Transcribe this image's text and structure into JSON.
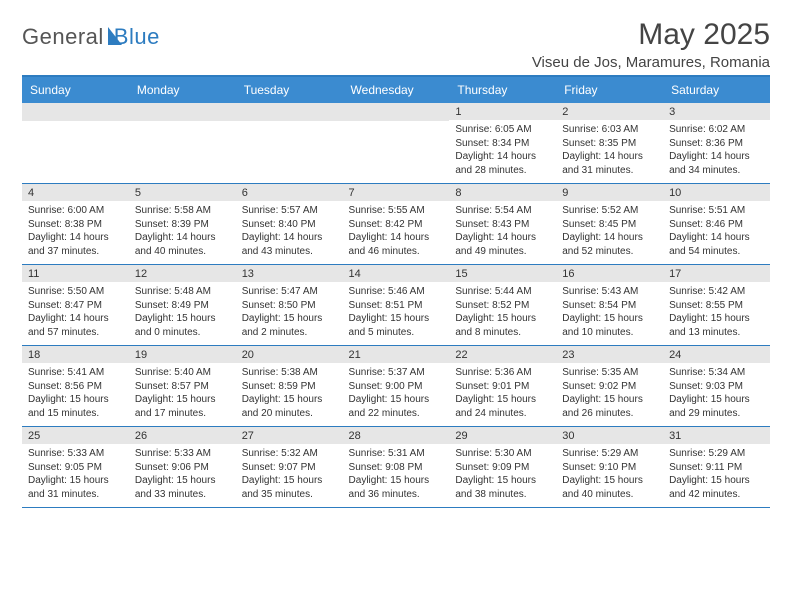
{
  "brand": {
    "part1": "General",
    "part2": "Blue"
  },
  "title": "May 2025",
  "location": "Viseu de Jos, Maramures, Romania",
  "colors": {
    "headerBlue": "#3b8bd0",
    "accentBorder": "#2d7cc0",
    "dayBarGray": "#e6e6e6",
    "textDark": "#333333",
    "background": "#ffffff"
  },
  "dayHeaders": [
    "Sunday",
    "Monday",
    "Tuesday",
    "Wednesday",
    "Thursday",
    "Friday",
    "Saturday"
  ],
  "weeks": [
    [
      {
        "num": "",
        "sr": "",
        "ss": "",
        "d1": "",
        "d2": ""
      },
      {
        "num": "",
        "sr": "",
        "ss": "",
        "d1": "",
        "d2": ""
      },
      {
        "num": "",
        "sr": "",
        "ss": "",
        "d1": "",
        "d2": ""
      },
      {
        "num": "",
        "sr": "",
        "ss": "",
        "d1": "",
        "d2": ""
      },
      {
        "num": "1",
        "sr": "Sunrise: 6:05 AM",
        "ss": "Sunset: 8:34 PM",
        "d1": "Daylight: 14 hours",
        "d2": "and 28 minutes."
      },
      {
        "num": "2",
        "sr": "Sunrise: 6:03 AM",
        "ss": "Sunset: 8:35 PM",
        "d1": "Daylight: 14 hours",
        "d2": "and 31 minutes."
      },
      {
        "num": "3",
        "sr": "Sunrise: 6:02 AM",
        "ss": "Sunset: 8:36 PM",
        "d1": "Daylight: 14 hours",
        "d2": "and 34 minutes."
      }
    ],
    [
      {
        "num": "4",
        "sr": "Sunrise: 6:00 AM",
        "ss": "Sunset: 8:38 PM",
        "d1": "Daylight: 14 hours",
        "d2": "and 37 minutes."
      },
      {
        "num": "5",
        "sr": "Sunrise: 5:58 AM",
        "ss": "Sunset: 8:39 PM",
        "d1": "Daylight: 14 hours",
        "d2": "and 40 minutes."
      },
      {
        "num": "6",
        "sr": "Sunrise: 5:57 AM",
        "ss": "Sunset: 8:40 PM",
        "d1": "Daylight: 14 hours",
        "d2": "and 43 minutes."
      },
      {
        "num": "7",
        "sr": "Sunrise: 5:55 AM",
        "ss": "Sunset: 8:42 PM",
        "d1": "Daylight: 14 hours",
        "d2": "and 46 minutes."
      },
      {
        "num": "8",
        "sr": "Sunrise: 5:54 AM",
        "ss": "Sunset: 8:43 PM",
        "d1": "Daylight: 14 hours",
        "d2": "and 49 minutes."
      },
      {
        "num": "9",
        "sr": "Sunrise: 5:52 AM",
        "ss": "Sunset: 8:45 PM",
        "d1": "Daylight: 14 hours",
        "d2": "and 52 minutes."
      },
      {
        "num": "10",
        "sr": "Sunrise: 5:51 AM",
        "ss": "Sunset: 8:46 PM",
        "d1": "Daylight: 14 hours",
        "d2": "and 54 minutes."
      }
    ],
    [
      {
        "num": "11",
        "sr": "Sunrise: 5:50 AM",
        "ss": "Sunset: 8:47 PM",
        "d1": "Daylight: 14 hours",
        "d2": "and 57 minutes."
      },
      {
        "num": "12",
        "sr": "Sunrise: 5:48 AM",
        "ss": "Sunset: 8:49 PM",
        "d1": "Daylight: 15 hours",
        "d2": "and 0 minutes."
      },
      {
        "num": "13",
        "sr": "Sunrise: 5:47 AM",
        "ss": "Sunset: 8:50 PM",
        "d1": "Daylight: 15 hours",
        "d2": "and 2 minutes."
      },
      {
        "num": "14",
        "sr": "Sunrise: 5:46 AM",
        "ss": "Sunset: 8:51 PM",
        "d1": "Daylight: 15 hours",
        "d2": "and 5 minutes."
      },
      {
        "num": "15",
        "sr": "Sunrise: 5:44 AM",
        "ss": "Sunset: 8:52 PM",
        "d1": "Daylight: 15 hours",
        "d2": "and 8 minutes."
      },
      {
        "num": "16",
        "sr": "Sunrise: 5:43 AM",
        "ss": "Sunset: 8:54 PM",
        "d1": "Daylight: 15 hours",
        "d2": "and 10 minutes."
      },
      {
        "num": "17",
        "sr": "Sunrise: 5:42 AM",
        "ss": "Sunset: 8:55 PM",
        "d1": "Daylight: 15 hours",
        "d2": "and 13 minutes."
      }
    ],
    [
      {
        "num": "18",
        "sr": "Sunrise: 5:41 AM",
        "ss": "Sunset: 8:56 PM",
        "d1": "Daylight: 15 hours",
        "d2": "and 15 minutes."
      },
      {
        "num": "19",
        "sr": "Sunrise: 5:40 AM",
        "ss": "Sunset: 8:57 PM",
        "d1": "Daylight: 15 hours",
        "d2": "and 17 minutes."
      },
      {
        "num": "20",
        "sr": "Sunrise: 5:38 AM",
        "ss": "Sunset: 8:59 PM",
        "d1": "Daylight: 15 hours",
        "d2": "and 20 minutes."
      },
      {
        "num": "21",
        "sr": "Sunrise: 5:37 AM",
        "ss": "Sunset: 9:00 PM",
        "d1": "Daylight: 15 hours",
        "d2": "and 22 minutes."
      },
      {
        "num": "22",
        "sr": "Sunrise: 5:36 AM",
        "ss": "Sunset: 9:01 PM",
        "d1": "Daylight: 15 hours",
        "d2": "and 24 minutes."
      },
      {
        "num": "23",
        "sr": "Sunrise: 5:35 AM",
        "ss": "Sunset: 9:02 PM",
        "d1": "Daylight: 15 hours",
        "d2": "and 26 minutes."
      },
      {
        "num": "24",
        "sr": "Sunrise: 5:34 AM",
        "ss": "Sunset: 9:03 PM",
        "d1": "Daylight: 15 hours",
        "d2": "and 29 minutes."
      }
    ],
    [
      {
        "num": "25",
        "sr": "Sunrise: 5:33 AM",
        "ss": "Sunset: 9:05 PM",
        "d1": "Daylight: 15 hours",
        "d2": "and 31 minutes."
      },
      {
        "num": "26",
        "sr": "Sunrise: 5:33 AM",
        "ss": "Sunset: 9:06 PM",
        "d1": "Daylight: 15 hours",
        "d2": "and 33 minutes."
      },
      {
        "num": "27",
        "sr": "Sunrise: 5:32 AM",
        "ss": "Sunset: 9:07 PM",
        "d1": "Daylight: 15 hours",
        "d2": "and 35 minutes."
      },
      {
        "num": "28",
        "sr": "Sunrise: 5:31 AM",
        "ss": "Sunset: 9:08 PM",
        "d1": "Daylight: 15 hours",
        "d2": "and 36 minutes."
      },
      {
        "num": "29",
        "sr": "Sunrise: 5:30 AM",
        "ss": "Sunset: 9:09 PM",
        "d1": "Daylight: 15 hours",
        "d2": "and 38 minutes."
      },
      {
        "num": "30",
        "sr": "Sunrise: 5:29 AM",
        "ss": "Sunset: 9:10 PM",
        "d1": "Daylight: 15 hours",
        "d2": "and 40 minutes."
      },
      {
        "num": "31",
        "sr": "Sunrise: 5:29 AM",
        "ss": "Sunset: 9:11 PM",
        "d1": "Daylight: 15 hours",
        "d2": "and 42 minutes."
      }
    ]
  ]
}
